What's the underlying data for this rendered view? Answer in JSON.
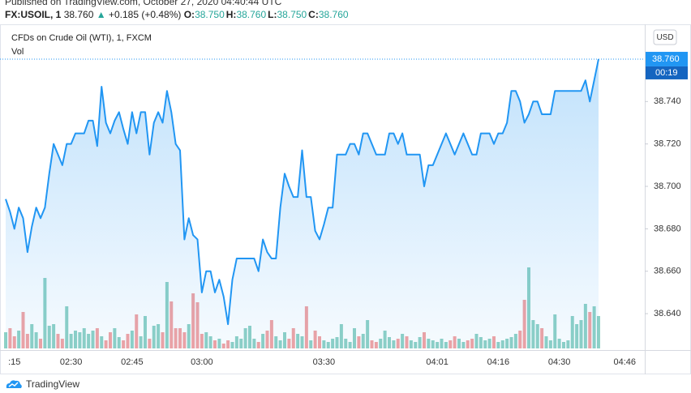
{
  "header": {
    "published": "Published on TradingView.com, October 27, 2020 04:40:44 UTC",
    "symbol": "FX:USOIL, 1",
    "last": "38.760",
    "arrow": "▲",
    "change": "+0.185 (+0.48%)",
    "ohlc": [
      {
        "label": "O:",
        "value": "38.750"
      },
      {
        "label": "H:",
        "value": "38.760"
      },
      {
        "label": "L:",
        "value": "38.750"
      },
      {
        "label": "C:",
        "value": "38.760"
      }
    ]
  },
  "chart_data": {
    "type": "area",
    "currency": "USD",
    "last_label": {
      "price": "38.760",
      "countdown": "00:19"
    },
    "categories": [
      null,
      null,
      ":15",
      null,
      null,
      null,
      null,
      null,
      null,
      null,
      null,
      null,
      null,
      null,
      null,
      "02:30",
      null,
      null,
      null,
      null,
      null,
      null,
      null,
      null,
      null,
      null,
      null,
      null,
      null,
      "02:45",
      null,
      null,
      null,
      null,
      null,
      null,
      null,
      null,
      null,
      null,
      null,
      null,
      null,
      null,
      null,
      "03:00",
      null,
      null,
      null,
      null,
      null,
      null,
      null,
      null,
      null,
      null,
      null,
      null,
      null,
      null,
      null,
      null,
      null,
      null,
      null,
      null,
      null,
      null,
      null,
      null,
      null,
      null,
      null,
      "03:30",
      null,
      null,
      null,
      null,
      null,
      null,
      null,
      null,
      null,
      null,
      null,
      null,
      null,
      null,
      null,
      null,
      null,
      null,
      null,
      null,
      null,
      null,
      null,
      null,
      null,
      "04:01",
      null,
      null,
      null,
      null,
      null,
      null,
      null,
      null,
      null,
      null,
      null,
      null,
      null,
      "04:16",
      null,
      null,
      null,
      null,
      null,
      null,
      null,
      null,
      null,
      null,
      null,
      null,
      null,
      "04:30",
      null,
      null,
      null,
      null,
      null,
      null,
      null,
      null,
      null,
      null,
      null,
      null,
      null,
      null,
      "04:46",
      null,
      null,
      null
    ],
    "series": [
      {
        "name": "CFDs on Crude Oil (WTI), 1, FXCM",
        "type": "area",
        "color": "#2196f3",
        "values": [
          38.694,
          38.688,
          38.68,
          38.69,
          38.685,
          38.669,
          38.681,
          38.69,
          38.685,
          38.69,
          38.706,
          38.72,
          38.715,
          38.71,
          38.72,
          38.72,
          38.725,
          38.725,
          38.725,
          38.731,
          38.731,
          38.719,
          38.747,
          38.73,
          38.725,
          38.731,
          38.735,
          38.727,
          38.72,
          38.735,
          38.725,
          38.735,
          38.735,
          38.715,
          38.73,
          38.735,
          38.73,
          38.745,
          38.735,
          38.72,
          38.717,
          38.675,
          38.685,
          38.677,
          38.675,
          38.65,
          38.66,
          38.66,
          38.65,
          38.656,
          38.648,
          38.635,
          38.656,
          38.666,
          38.666,
          38.666,
          38.666,
          38.666,
          38.66,
          38.675,
          38.669,
          38.666,
          38.666,
          38.69,
          38.706,
          38.7,
          38.695,
          38.695,
          38.717,
          38.695,
          38.695,
          38.679,
          38.675,
          38.682,
          38.69,
          38.69,
          38.715,
          38.715,
          38.715,
          38.72,
          38.72,
          38.715,
          38.725,
          38.725,
          38.72,
          38.715,
          38.715,
          38.715,
          38.725,
          38.725,
          38.72,
          38.725,
          38.715,
          38.715,
          38.715,
          38.715,
          38.7,
          38.71,
          38.71,
          38.715,
          38.72,
          38.725,
          38.72,
          38.715,
          38.72,
          38.725,
          38.72,
          38.715,
          38.715,
          38.725,
          38.725,
          38.725,
          38.72,
          38.725,
          38.725,
          38.73,
          38.745,
          38.745,
          38.74,
          38.73,
          38.734,
          38.74,
          38.74,
          38.734,
          38.734,
          38.734,
          38.745,
          38.745,
          38.745,
          38.745,
          38.745,
          38.745,
          38.745,
          38.75,
          38.74,
          38.75,
          38.76,
          null,
          null,
          null,
          null,
          null,
          null,
          null,
          null,
          null
        ]
      },
      {
        "name": "Vol",
        "type": "volume",
        "up_color": "#8fd1c5",
        "down_color": "#f2a3a3",
        "values": [
          20,
          25,
          15,
          22,
          45,
          18,
          30,
          20,
          12,
          87,
          28,
          30,
          18,
          12,
          52,
          18,
          22,
          20,
          25,
          18,
          22,
          25,
          15,
          10,
          20,
          25,
          14,
          10,
          18,
          22,
          42,
          15,
          40,
          12,
          28,
          30,
          20,
          82,
          58,
          25,
          25,
          20,
          30,
          68,
          57,
          18,
          20,
          15,
          10,
          12,
          6,
          10,
          8,
          15,
          12,
          25,
          28,
          12,
          8,
          18,
          22,
          35,
          15,
          10,
          20,
          12,
          25,
          18,
          15,
          52,
          10,
          22,
          15,
          10,
          8,
          12,
          14,
          30,
          12,
          8,
          25,
          15,
          18,
          35,
          10,
          8,
          12,
          22,
          14,
          10,
          12,
          18,
          15,
          10,
          8,
          14,
          20,
          12,
          10,
          8,
          12,
          8,
          10,
          15,
          12,
          8,
          10,
          12,
          18,
          14,
          10,
          12,
          15,
          8,
          10,
          12,
          14,
          18,
          22,
          60,
          100,
          35,
          30,
          25,
          15,
          10,
          42,
          12,
          8,
          10,
          40,
          30,
          35,
          55,
          45,
          52,
          40,
          null,
          null,
          null,
          null,
          null,
          null,
          null,
          null,
          null
        ]
      }
    ],
    "ylim": [
      38.6236,
      38.7745
    ],
    "yticks": [
      {
        "value": 38.64,
        "label": "38.640"
      },
      {
        "value": 38.66,
        "label": "38.660"
      },
      {
        "value": 38.68,
        "label": "38.680"
      },
      {
        "value": 38.7,
        "label": "38.700"
      },
      {
        "value": 38.72,
        "label": "38.720"
      },
      {
        "value": 38.74,
        "label": "38.740"
      }
    ],
    "grid": false
  },
  "footer": {
    "brand": "TradingView"
  }
}
